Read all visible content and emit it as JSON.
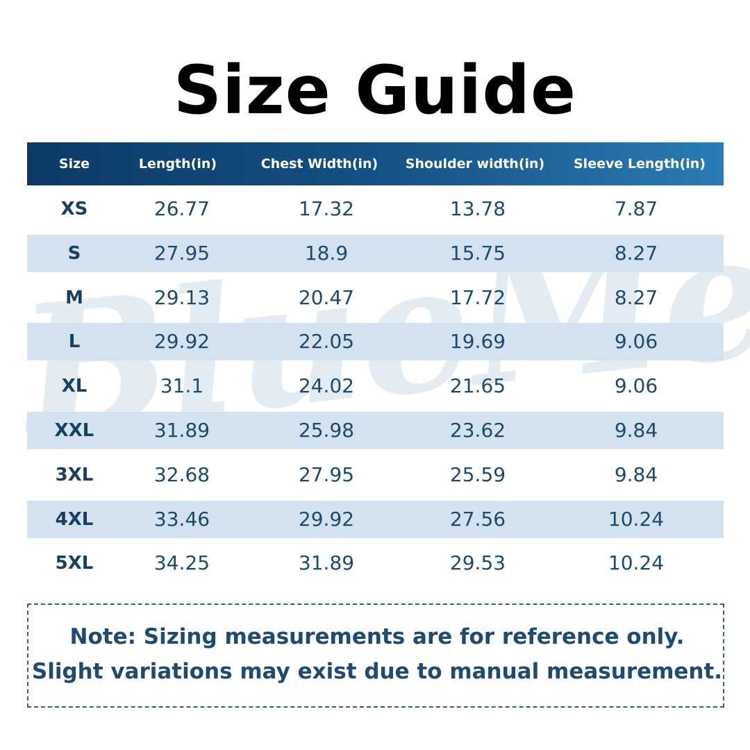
{
  "header": {
    "title": "Size Guide"
  },
  "watermark": "BlueMere",
  "table": {
    "columns": [
      "Size",
      "Length(in)",
      "Chest Width(in)",
      "Shoulder width(in)",
      "Sleeve Length(in)"
    ],
    "rows": [
      [
        "XS",
        "26.77",
        "17.32",
        "13.78",
        "7.87"
      ],
      [
        "S",
        "27.95",
        "18.9",
        "15.75",
        "8.27"
      ],
      [
        "M",
        "29.13",
        "20.47",
        "17.72",
        "8.27"
      ],
      [
        "L",
        "29.92",
        "22.05",
        "19.69",
        "9.06"
      ],
      [
        "XL",
        "31.1",
        "24.02",
        "21.65",
        "9.06"
      ],
      [
        "XXL",
        "31.89",
        "25.98",
        "23.62",
        "9.84"
      ],
      [
        "3XL",
        "32.68",
        "27.95",
        "25.59",
        "9.84"
      ],
      [
        "4XL",
        "33.46",
        "29.92",
        "27.56",
        "10.24"
      ],
      [
        "5XL",
        "34.25",
        "31.89",
        "29.53",
        "10.24"
      ]
    ]
  },
  "note": {
    "lines": [
      "Note: Sizing measurements are for reference only.",
      "Slight variations may exist due to manual measurement."
    ]
  }
}
